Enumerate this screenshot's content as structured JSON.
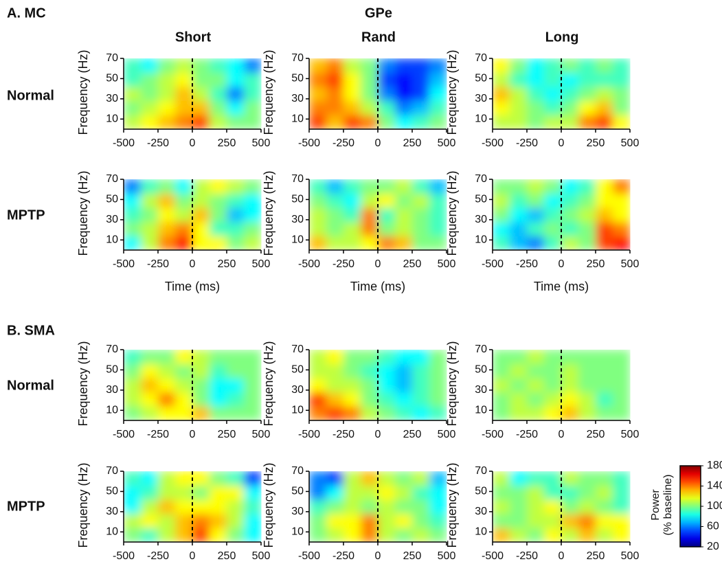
{
  "header": {
    "title": "GPe",
    "columns": [
      "Short",
      "Rand",
      "Long"
    ]
  },
  "sections": [
    {
      "label": "A. MC",
      "rows": [
        "Normal",
        "MPTP"
      ]
    },
    {
      "label": "B. SMA",
      "rows": [
        "Normal",
        "MPTP"
      ]
    }
  ],
  "colorbar": {
    "label": [
      "Power",
      "(% baseline)"
    ],
    "lim": [
      20,
      180
    ],
    "ticks": [
      20,
      60,
      100,
      140,
      180
    ],
    "colormap": "jet"
  },
  "chart_data": [
    {
      "type": "heatmap",
      "ylabel": "Frequency (Hz)",
      "x": [
        -437.5,
        -312.5,
        -187.5,
        -62.5,
        62.5,
        187.5,
        312.5,
        437.5
      ],
      "y": [
        7,
        21,
        35,
        49,
        63
      ],
      "xlim": [
        -500,
        500
      ],
      "xticks": [
        -500,
        -250,
        0,
        250,
        500
      ],
      "ylim": [
        0,
        70
      ],
      "yticks": [
        10,
        30,
        50,
        70
      ],
      "zlim": [
        20,
        180
      ],
      "colormap": "jet",
      "vline": 0,
      "z": [
        [
          110,
          120,
          130,
          140,
          150,
          110,
          100,
          100
        ],
        [
          100,
          110,
          120,
          130,
          130,
          100,
          80,
          100
        ],
        [
          110,
          100,
          110,
          130,
          110,
          90,
          60,
          90
        ],
        [
          90,
          100,
          110,
          120,
          100,
          100,
          80,
          90
        ],
        [
          90,
          80,
          100,
          110,
          100,
          90,
          80,
          60
        ]
      ]
    },
    {
      "type": "heatmap",
      "ylabel": "Frequency (Hz)",
      "x": [
        -437.5,
        -312.5,
        -187.5,
        -62.5,
        62.5,
        187.5,
        312.5,
        437.5
      ],
      "y": [
        7,
        21,
        35,
        49,
        63
      ],
      "xlim": [
        -500,
        500
      ],
      "xticks": [
        -500,
        -250,
        0,
        250,
        500
      ],
      "ylim": [
        0,
        70
      ],
      "yticks": [
        10,
        30,
        50,
        70
      ],
      "zlim": [
        20,
        180
      ],
      "colormap": "jet",
      "vline": 0,
      "z": [
        [
          150,
          130,
          150,
          140,
          100,
          80,
          90,
          100
        ],
        [
          140,
          140,
          130,
          110,
          90,
          60,
          70,
          90
        ],
        [
          130,
          140,
          120,
          100,
          60,
          40,
          50,
          80
        ],
        [
          140,
          150,
          120,
          100,
          50,
          40,
          50,
          70
        ],
        [
          130,
          140,
          110,
          100,
          60,
          50,
          50,
          60
        ]
      ]
    },
    {
      "type": "heatmap",
      "ylabel": "Frequency (Hz)",
      "x": [
        -437.5,
        -312.5,
        -187.5,
        -62.5,
        62.5,
        187.5,
        312.5,
        437.5
      ],
      "y": [
        7,
        21,
        35,
        49,
        63
      ],
      "xlim": [
        -500,
        500
      ],
      "xticks": [
        -500,
        -250,
        0,
        250,
        500
      ],
      "ylim": [
        0,
        70
      ],
      "yticks": [
        10,
        30,
        50,
        70
      ],
      "zlim": [
        20,
        180
      ],
      "colormap": "jet",
      "vline": 0,
      "z": [
        [
          110,
          110,
          100,
          110,
          110,
          140,
          150,
          120
        ],
        [
          120,
          110,
          100,
          90,
          100,
          120,
          130,
          100
        ],
        [
          130,
          110,
          90,
          80,
          90,
          100,
          110,
          100
        ],
        [
          110,
          90,
          80,
          90,
          80,
          90,
          90,
          90
        ],
        [
          120,
          100,
          80,
          90,
          100,
          90,
          100,
          90
        ]
      ]
    },
    {
      "type": "heatmap",
      "ylabel": "Frequency (Hz)",
      "xlabel": "Time (ms)",
      "x": [
        -437.5,
        -312.5,
        -187.5,
        -62.5,
        62.5,
        187.5,
        312.5,
        437.5
      ],
      "y": [
        7,
        21,
        35,
        49,
        63
      ],
      "xlim": [
        -500,
        500
      ],
      "xticks": [
        -500,
        -250,
        0,
        250,
        500
      ],
      "ylim": [
        0,
        70
      ],
      "yticks": [
        10,
        30,
        50,
        70
      ],
      "zlim": [
        20,
        180
      ],
      "colormap": "jet",
      "vline": 0,
      "z": [
        [
          80,
          110,
          140,
          160,
          120,
          120,
          100,
          110
        ],
        [
          100,
          110,
          130,
          140,
          120,
          90,
          90,
          100
        ],
        [
          90,
          100,
          120,
          110,
          130,
          100,
          70,
          80
        ],
        [
          80,
          110,
          130,
          100,
          110,
          100,
          90,
          80
        ],
        [
          60,
          90,
          100,
          80,
          110,
          120,
          110,
          100
        ]
      ]
    },
    {
      "type": "heatmap",
      "ylabel": "Frequency (Hz)",
      "xlabel": "Time (ms)",
      "x": [
        -437.5,
        -312.5,
        -187.5,
        -62.5,
        62.5,
        187.5,
        312.5,
        437.5
      ],
      "y": [
        7,
        21,
        35,
        49,
        63
      ],
      "xlim": [
        -500,
        500
      ],
      "xticks": [
        -500,
        -250,
        0,
        250,
        500
      ],
      "ylim": [
        0,
        70
      ],
      "yticks": [
        10,
        30,
        50,
        70
      ],
      "zlim": [
        20,
        180
      ],
      "colormap": "jet",
      "vline": 0,
      "z": [
        [
          130,
          110,
          110,
          120,
          140,
          130,
          100,
          100
        ],
        [
          110,
          100,
          110,
          140,
          100,
          110,
          100,
          90
        ],
        [
          110,
          100,
          90,
          140,
          90,
          110,
          100,
          90
        ],
        [
          100,
          90,
          80,
          110,
          120,
          100,
          110,
          90
        ],
        [
          90,
          70,
          90,
          100,
          100,
          110,
          90,
          70
        ]
      ]
    },
    {
      "type": "heatmap",
      "ylabel": "Frequency (Hz)",
      "xlabel": "Time (ms)",
      "x": [
        -437.5,
        -312.5,
        -187.5,
        -62.5,
        62.5,
        187.5,
        312.5,
        437.5
      ],
      "y": [
        7,
        21,
        35,
        49,
        63
      ],
      "xlim": [
        -500,
        500
      ],
      "xticks": [
        -500,
        -250,
        0,
        250,
        500
      ],
      "ylim": [
        0,
        70
      ],
      "yticks": [
        10,
        30,
        50,
        70
      ],
      "zlim": [
        20,
        180
      ],
      "colormap": "jet",
      "vline": 0,
      "z": [
        [
          90,
          70,
          60,
          90,
          110,
          100,
          150,
          160
        ],
        [
          80,
          70,
          90,
          100,
          90,
          100,
          150,
          140
        ],
        [
          100,
          80,
          70,
          90,
          100,
          110,
          130,
          120
        ],
        [
          110,
          90,
          100,
          80,
          90,
          100,
          120,
          120
        ],
        [
          100,
          100,
          110,
          100,
          80,
          90,
          120,
          140
        ]
      ]
    },
    {
      "type": "heatmap",
      "ylabel": "Frequency (Hz)",
      "x": [
        -437.5,
        -312.5,
        -187.5,
        -62.5,
        62.5,
        187.5,
        312.5,
        437.5
      ],
      "y": [
        7,
        21,
        35,
        49,
        63
      ],
      "xlim": [
        -500,
        500
      ],
      "xticks": [
        -500,
        -250,
        0,
        250,
        500
      ],
      "ylim": [
        0,
        70
      ],
      "yticks": [
        10,
        30,
        50,
        70
      ],
      "zlim": [
        20,
        180
      ],
      "colormap": "jet",
      "vline": 0,
      "z": [
        [
          100,
          110,
          120,
          120,
          130,
          100,
          100,
          100
        ],
        [
          110,
          120,
          140,
          120,
          100,
          80,
          90,
          100
        ],
        [
          110,
          130,
          120,
          110,
          100,
          80,
          80,
          100
        ],
        [
          100,
          120,
          110,
          100,
          110,
          90,
          100,
          100
        ],
        [
          90,
          100,
          100,
          120,
          110,
          100,
          100,
          100
        ]
      ]
    },
    {
      "type": "heatmap",
      "ylabel": "Frequency (Hz)",
      "x": [
        -437.5,
        -312.5,
        -187.5,
        -62.5,
        62.5,
        187.5,
        312.5,
        437.5
      ],
      "y": [
        7,
        21,
        35,
        49,
        63
      ],
      "xlim": [
        -500,
        500
      ],
      "xticks": [
        -500,
        -250,
        0,
        250,
        500
      ],
      "ylim": [
        0,
        70
      ],
      "yticks": [
        10,
        30,
        50,
        70
      ],
      "zlim": [
        20,
        180
      ],
      "colormap": "jet",
      "vline": 0,
      "z": [
        [
          140,
          150,
          140,
          110,
          100,
          90,
          80,
          90
        ],
        [
          150,
          130,
          120,
          100,
          90,
          80,
          90,
          100
        ],
        [
          120,
          110,
          110,
          100,
          80,
          70,
          90,
          100
        ],
        [
          110,
          110,
          100,
          90,
          80,
          70,
          90,
          100
        ],
        [
          110,
          120,
          100,
          100,
          90,
          80,
          80,
          100
        ]
      ]
    },
    {
      "type": "heatmap",
      "ylabel": "Frequency (Hz)",
      "x": [
        -437.5,
        -312.5,
        -187.5,
        -62.5,
        62.5,
        187.5,
        312.5,
        437.5
      ],
      "y": [
        7,
        21,
        35,
        49,
        63
      ],
      "xlim": [
        -500,
        500
      ],
      "xticks": [
        -500,
        -250,
        0,
        250,
        500
      ],
      "ylim": [
        0,
        70
      ],
      "yticks": [
        10,
        30,
        50,
        70
      ],
      "zlim": [
        20,
        180
      ],
      "colormap": "jet",
      "vline": 0,
      "z": [
        [
          100,
          110,
          110,
          120,
          130,
          110,
          100,
          100
        ],
        [
          100,
          110,
          100,
          110,
          120,
          110,
          90,
          100
        ],
        [
          110,
          100,
          110,
          100,
          110,
          100,
          100,
          100
        ],
        [
          100,
          110,
          100,
          100,
          110,
          100,
          100,
          100
        ],
        [
          100,
          100,
          110,
          100,
          100,
          100,
          100,
          100
        ]
      ]
    },
    {
      "type": "heatmap",
      "ylabel": "Frequency (Hz)",
      "x": [
        -437.5,
        -312.5,
        -187.5,
        -62.5,
        62.5,
        187.5,
        312.5,
        437.5
      ],
      "y": [
        7,
        21,
        35,
        49,
        63
      ],
      "xlim": [
        -500,
        500
      ],
      "xticks": [
        -500,
        -250,
        0,
        250,
        500
      ],
      "ylim": [
        0,
        70
      ],
      "yticks": [
        10,
        30,
        50,
        70
      ],
      "zlim": [
        20,
        180
      ],
      "colormap": "jet",
      "vline": 0,
      "z": [
        [
          100,
          90,
          110,
          130,
          150,
          120,
          100,
          80
        ],
        [
          110,
          120,
          110,
          130,
          140,
          130,
          110,
          80
        ],
        [
          80,
          110,
          130,
          120,
          120,
          120,
          110,
          90
        ],
        [
          80,
          90,
          110,
          110,
          100,
          120,
          120,
          80
        ],
        [
          90,
          80,
          110,
          120,
          120,
          100,
          90,
          50
        ]
      ]
    },
    {
      "type": "heatmap",
      "ylabel": "Frequency (Hz)",
      "x": [
        -437.5,
        -312.5,
        -187.5,
        -62.5,
        62.5,
        187.5,
        312.5,
        437.5
      ],
      "y": [
        7,
        21,
        35,
        49,
        63
      ],
      "xlim": [
        -500,
        500
      ],
      "xticks": [
        -500,
        -250,
        0,
        250,
        500
      ],
      "ylim": [
        0,
        70
      ],
      "yticks": [
        10,
        30,
        50,
        70
      ],
      "zlim": [
        20,
        180
      ],
      "colormap": "jet",
      "vline": 0,
      "z": [
        [
          100,
          110,
          120,
          140,
          110,
          100,
          110,
          100
        ],
        [
          100,
          120,
          120,
          140,
          110,
          120,
          100,
          90
        ],
        [
          90,
          100,
          110,
          100,
          110,
          100,
          100,
          80
        ],
        [
          60,
          80,
          110,
          110,
          120,
          110,
          90,
          80
        ],
        [
          60,
          50,
          110,
          130,
          110,
          100,
          110,
          70
        ]
      ]
    },
    {
      "type": "heatmap",
      "ylabel": "Frequency (Hz)",
      "x": [
        -437.5,
        -312.5,
        -187.5,
        -62.5,
        62.5,
        187.5,
        312.5,
        437.5
      ],
      "y": [
        7,
        21,
        35,
        49,
        63
      ],
      "xlim": [
        -500,
        500
      ],
      "xticks": [
        -500,
        -250,
        0,
        250,
        500
      ],
      "ylim": [
        0,
        70
      ],
      "yticks": [
        10,
        30,
        50,
        70
      ],
      "zlim": [
        20,
        180
      ],
      "colormap": "jet",
      "vline": 0,
      "z": [
        [
          130,
          110,
          100,
          120,
          110,
          130,
          110,
          120
        ],
        [
          100,
          100,
          110,
          110,
          130,
          140,
          120,
          120
        ],
        [
          110,
          100,
          110,
          120,
          100,
          110,
          100,
          90
        ],
        [
          100,
          100,
          110,
          90,
          90,
          100,
          110,
          90
        ],
        [
          110,
          80,
          90,
          90,
          110,
          100,
          100,
          90
        ]
      ]
    }
  ]
}
